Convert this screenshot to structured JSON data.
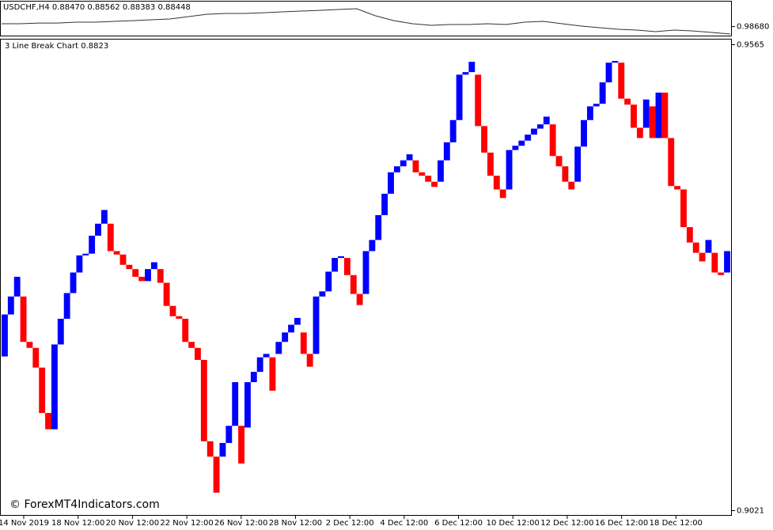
{
  "chart_data": [
    {
      "type": "line",
      "title": "USDCHF,H4  0.88470 0.88562 0.88383 0.88448",
      "color": "#333333",
      "values": [
        0.98708,
        0.98708,
        0.98715,
        0.98715,
        0.98723,
        0.98723,
        0.98731,
        0.98738,
        0.98746,
        0.98754,
        0.98777,
        0.988,
        0.98808,
        0.98808,
        0.98815,
        0.98823,
        0.98831,
        0.98838,
        0.98846,
        0.98854,
        0.98785,
        0.98738,
        0.98708,
        0.98692,
        0.987,
        0.987,
        0.98708,
        0.987,
        0.98723,
        0.98731,
        0.98708,
        0.98685,
        0.98669,
        0.98654,
        0.98646,
        0.98631,
        0.98646,
        0.98638,
        0.98623,
        0.98608
      ],
      "ylim": [
        0.986,
        0.989
      ],
      "yticks": [
        {
          "value": 0.9868,
          "label": "0.98680"
        }
      ]
    },
    {
      "type": "line-break",
      "title": "3 Line Break Chart 0.8823",
      "annotation": "© ForexMT4Indicators.com",
      "up_color": "#0000ff",
      "down_color": "#ff0000",
      "open": [
        0.9201,
        0.925,
        0.9271,
        0.9271,
        0.9218,
        0.9211,
        0.9188,
        0.9135,
        0.9116,
        0.9215,
        0.9245,
        0.9275,
        0.9299,
        0.9319,
        0.9321,
        0.9342,
        0.9356,
        0.9356,
        0.9324,
        0.932,
        0.9308,
        0.9303,
        0.9294,
        0.9289,
        0.9303,
        0.9303,
        0.9287,
        0.926,
        0.9248,
        0.9245,
        0.9218,
        0.9211,
        0.9197,
        0.9102,
        0.9084,
        0.9084,
        0.91,
        0.912,
        0.912,
        0.9118,
        0.9171,
        0.9183,
        0.92,
        0.92,
        0.9204,
        0.9218,
        0.9229,
        0.9238,
        0.9229,
        0.9204,
        0.9204,
        0.9271,
        0.9277,
        0.93,
        0.9316,
        0.9316,
        0.9296,
        0.9274,
        0.9274,
        0.9324,
        0.9337,
        0.9366,
        0.9391,
        0.9416,
        0.9423,
        0.943,
        0.943,
        0.9416,
        0.9412,
        0.9405,
        0.9405,
        0.943,
        0.9451,
        0.9477,
        0.953,
        0.9533,
        0.953,
        0.947,
        0.9439,
        0.9412,
        0.9396,
        0.9396,
        0.9442,
        0.9447,
        0.9453,
        0.946,
        0.9467,
        0.9472,
        0.9472,
        0.9435,
        0.9423,
        0.9405,
        0.9405,
        0.9446,
        0.9477,
        0.9493,
        0.9496,
        0.9521,
        0.9544,
        0.9544,
        0.9502,
        0.9495,
        0.9468,
        0.9468,
        0.9493,
        0.9456,
        0.9509,
        0.9456,
        0.94,
        0.9396,
        0.9352,
        0.9334,
        0.9322,
        0.9322,
        0.9322,
        0.9299,
        0.9299
      ],
      "close": [
        0.925,
        0.9271,
        0.9294,
        0.9218,
        0.9211,
        0.9188,
        0.9135,
        0.9116,
        0.9215,
        0.9245,
        0.9275,
        0.9299,
        0.9319,
        0.9321,
        0.9342,
        0.9356,
        0.9372,
        0.9324,
        0.932,
        0.9308,
        0.9303,
        0.9294,
        0.9289,
        0.9303,
        0.9311,
        0.9287,
        0.926,
        0.9248,
        0.9245,
        0.9218,
        0.9211,
        0.9197,
        0.9102,
        0.9084,
        0.9042,
        0.91,
        0.912,
        0.9171,
        0.9076,
        0.9171,
        0.9183,
        0.92,
        0.9204,
        0.9161,
        0.9218,
        0.9229,
        0.9238,
        0.9246,
        0.9204,
        0.9189,
        0.9271,
        0.9277,
        0.93,
        0.9316,
        0.9318,
        0.9296,
        0.9274,
        0.9261,
        0.9324,
        0.9337,
        0.9366,
        0.9391,
        0.9416,
        0.9423,
        0.943,
        0.9437,
        0.9416,
        0.9412,
        0.9405,
        0.9399,
        0.943,
        0.9451,
        0.9477,
        0.953,
        0.9533,
        0.9545,
        0.947,
        0.9439,
        0.9412,
        0.9396,
        0.9386,
        0.9442,
        0.9447,
        0.9453,
        0.946,
        0.9467,
        0.9472,
        0.9481,
        0.9435,
        0.9423,
        0.9405,
        0.9396,
        0.9446,
        0.9477,
        0.9493,
        0.9496,
        0.9521,
        0.9544,
        0.9546,
        0.9502,
        0.9495,
        0.9468,
        0.9456,
        0.9501,
        0.9456,
        0.9509,
        0.9456,
        0.94,
        0.9396,
        0.9352,
        0.9334,
        0.9322,
        0.9312,
        0.9337,
        0.9299,
        0.9296,
        0.9324
      ],
      "ylim": [
        0.9015,
        0.9571
      ],
      "yticks": [
        0.9565,
        0.9021
      ],
      "x_labels": [
        "14 Nov 2019",
        "18 Nov 12:00",
        "20 Nov 12:00",
        "22 Nov 12:00",
        "26 Nov 12:00",
        "28 Nov 12:00",
        "2 Dec 12:00",
        "4 Dec 12:00",
        "6 Dec 12:00",
        "10 Dec 12:00",
        "12 Dec 12:00",
        "16 Dec 12:00",
        "18 Dec 12:00"
      ]
    }
  ]
}
